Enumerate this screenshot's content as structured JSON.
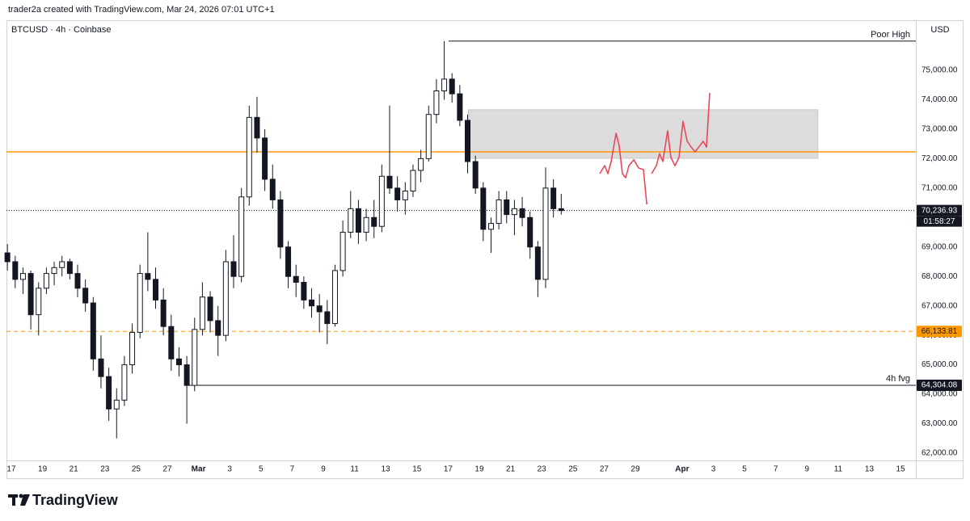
{
  "header": {
    "text": "trader2a created with TradingView.com, Mar 24, 2026 07:01 UTC+1"
  },
  "footer": {
    "brand": "TradingView"
  },
  "chart_data": {
    "type": "candlestick",
    "title": "BTCUSD · 4h · Coinbase",
    "currency": "USD",
    "up_color": "#ffffff",
    "down_color": "#131722",
    "border_color": "#131722",
    "xlim": [
      -0.31,
      57.98
    ],
    "ylim": [
      61753,
      76700
    ],
    "grid": false,
    "xticks": [
      {
        "value": 0,
        "label": "17"
      },
      {
        "value": 2,
        "label": "19"
      },
      {
        "value": 4,
        "label": "21"
      },
      {
        "value": 6,
        "label": "23"
      },
      {
        "value": 8,
        "label": "25"
      },
      {
        "value": 10,
        "label": "27"
      },
      {
        "value": 12,
        "label": "Mar"
      },
      {
        "value": 14,
        "label": "3"
      },
      {
        "value": 16,
        "label": "5"
      },
      {
        "value": 18,
        "label": "7"
      },
      {
        "value": 20,
        "label": "9"
      },
      {
        "value": 22,
        "label": "11"
      },
      {
        "value": 24,
        "label": "13"
      },
      {
        "value": 26,
        "label": "15"
      },
      {
        "value": 28,
        "label": "17"
      },
      {
        "value": 30,
        "label": "19"
      },
      {
        "value": 32,
        "label": "21"
      },
      {
        "value": 34,
        "label": "23"
      },
      {
        "value": 36,
        "label": "25"
      },
      {
        "value": 38,
        "label": "27"
      },
      {
        "value": 40,
        "label": "29"
      },
      {
        "value": 43,
        "label": "Apr"
      },
      {
        "value": 45,
        "label": "3"
      },
      {
        "value": 47,
        "label": "5"
      },
      {
        "value": 49,
        "label": "7"
      },
      {
        "value": 51,
        "label": "9"
      },
      {
        "value": 53,
        "label": "11"
      },
      {
        "value": 55,
        "label": "13"
      },
      {
        "value": 57,
        "label": "15"
      }
    ],
    "yticks": [
      {
        "value": 62000,
        "label": "62,000.00"
      },
      {
        "value": 63000,
        "label": "63,000.00"
      },
      {
        "value": 64000,
        "label": "64,000.00"
      },
      {
        "value": 65000,
        "label": "65,000.00"
      },
      {
        "value": 66000,
        "label": "66,000.00"
      },
      {
        "value": 67000,
        "label": "67,000.00"
      },
      {
        "value": 68000,
        "label": "68,000.00"
      },
      {
        "value": 69000,
        "label": "69,000.00"
      },
      {
        "value": 70000,
        "label": "70,000.00"
      },
      {
        "value": 71000,
        "label": "71,000.00"
      },
      {
        "value": 72000,
        "label": "72,000.00"
      },
      {
        "value": 73000,
        "label": "73,000.00"
      },
      {
        "value": 74000,
        "label": "74,000.00"
      },
      {
        "value": 75000,
        "label": "75,000.00"
      }
    ],
    "x": [
      -0.25,
      0.25,
      0.75,
      1.25,
      1.75,
      2.25,
      2.75,
      3.25,
      3.75,
      4.25,
      4.75,
      5.25,
      5.75,
      6.25,
      6.75,
      7.25,
      7.75,
      8.25,
      8.75,
      9.25,
      9.75,
      10.25,
      10.75,
      11.25,
      11.75,
      12.25,
      12.75,
      13.25,
      13.75,
      14.25,
      14.75,
      15.25,
      15.75,
      16.25,
      16.75,
      17.25,
      17.75,
      18.25,
      18.75,
      19.25,
      19.75,
      20.25,
      20.75,
      21.25,
      21.75,
      22.25,
      22.75,
      23.25,
      23.75,
      24.25,
      24.75,
      25.25,
      25.75,
      26.25,
      26.75,
      27.25,
      27.75,
      28.25,
      28.75,
      29.25,
      29.75,
      30.25,
      30.75,
      31.25,
      31.75,
      32.25,
      32.75,
      33.25,
      33.75,
      34.25,
      34.75,
      35.25
    ],
    "open": [
      68800,
      68500,
      67900,
      68100,
      66700,
      67600,
      68100,
      68300,
      68500,
      68100,
      67600,
      67100,
      65200,
      64600,
      63500,
      63800,
      65000,
      66100,
      68100,
      67900,
      67200,
      66300,
      65200,
      65000,
      64300,
      66200,
      67300,
      66500,
      66000,
      68500,
      68000,
      70700,
      73400,
      72700,
      71300,
      70600,
      69000,
      68000,
      67800,
      67200,
      67000,
      66800,
      66400,
      68200,
      69500,
      70300,
      69500,
      70000,
      69700,
      71400,
      71000,
      70600,
      70900,
      71600,
      72000,
      73500,
      74300,
      74700,
      74200,
      73300,
      71900,
      71000,
      69600,
      69800,
      70600,
      70100,
      70300,
      70000,
      69000,
      67900,
      71000,
      70300
    ],
    "high": [
      69100,
      68700,
      68300,
      68200,
      67800,
      68300,
      68500,
      68700,
      68600,
      68400,
      67900,
      67300,
      66000,
      64900,
      64200,
      65300,
      66400,
      68400,
      69500,
      68300,
      67600,
      66700,
      65600,
      65300,
      66600,
      67800,
      67500,
      67000,
      68900,
      69400,
      71000,
      73800,
      74100,
      73000,
      71800,
      70900,
      69200,
      68400,
      68000,
      67600,
      67400,
      67200,
      68400,
      69900,
      70900,
      70600,
      70300,
      70600,
      71800,
      73800,
      71400,
      71200,
      71800,
      72300,
      73800,
      74700,
      75990,
      74900,
      74500,
      73500,
      72100,
      71200,
      70000,
      70900,
      70900,
      70600,
      70700,
      70200,
      69200,
      71700,
      71300,
      70800
    ],
    "low": [
      68200,
      67600,
      67400,
      66200,
      66000,
      67400,
      67700,
      68000,
      67900,
      67300,
      66800,
      64800,
      64200,
      63100,
      62500,
      63600,
      64700,
      65900,
      67500,
      66900,
      66000,
      64800,
      64600,
      63000,
      64100,
      66000,
      66100,
      65300,
      65800,
      67600,
      67800,
      70400,
      72200,
      70900,
      70300,
      68600,
      67600,
      67300,
      66900,
      66600,
      66100,
      65700,
      66300,
      68000,
      69300,
      69100,
      69200,
      69300,
      69500,
      70800,
      70200,
      70100,
      70700,
      71200,
      71900,
      73200,
      74000,
      73900,
      73100,
      71500,
      70800,
      69200,
      68800,
      69600,
      69800,
      69400,
      69700,
      68600,
      67300,
      67600,
      70000,
      70100
    ],
    "close": [
      68500,
      67900,
      68100,
      66700,
      67600,
      68100,
      68300,
      68500,
      68100,
      67600,
      67100,
      65200,
      64600,
      63500,
      63800,
      65000,
      66100,
      68100,
      67900,
      67200,
      66300,
      65200,
      65000,
      64300,
      66200,
      67300,
      66500,
      66000,
      68500,
      68000,
      70700,
      73400,
      72700,
      71300,
      70600,
      69000,
      68000,
      67800,
      67200,
      67000,
      66800,
      66400,
      68200,
      69500,
      70300,
      69500,
      70000,
      69700,
      71400,
      71000,
      70600,
      70900,
      71600,
      72000,
      73500,
      74300,
      74700,
      74200,
      73300,
      71900,
      71000,
      69600,
      69800,
      70600,
      70100,
      70300,
      70000,
      69000,
      67900,
      71000,
      70300,
      70236.93
    ],
    "zone": {
      "x": [
        29.3,
        51.7
      ],
      "y": [
        72010,
        73660
      ],
      "color": "#dcdcdc"
    },
    "levels": [
      {
        "value": 72230,
        "color": "#ff9800",
        "style": "solid"
      },
      {
        "value": 66133.81,
        "label": "66,133.81",
        "color": "#ff9800",
        "style": "dashed"
      },
      {
        "value": 70236.93,
        "label": "70,236.93",
        "countdown": "01:58:27",
        "color": "#131722",
        "style": "dotted"
      },
      {
        "value": 64304.08,
        "label": "64,304.08",
        "text": "4h fvg",
        "color": "#131722",
        "style": "solid",
        "x_start": 11.35
      },
      {
        "value": 75990,
        "text": "Poor High",
        "color": "#131722",
        "style": "solid",
        "x_start": 28.03
      }
    ],
    "drawing": {
      "color": "#e8485b",
      "x": [
        37.72,
        38.03,
        38.24,
        38.45,
        38.76,
        38.96,
        39.17,
        39.38,
        39.59,
        39.9,
        40.21,
        40.52,
        40.73,
        null,
        41.04,
        41.35,
        41.55,
        41.76,
        42.07,
        42.28,
        42.54,
        42.8,
        43.06,
        43.32,
        43.58,
        43.83,
        44.15,
        44.35,
        44.56,
        44.77
      ],
      "y": [
        71490,
        71760,
        71490,
        71900,
        72860,
        72450,
        71490,
        71350,
        71760,
        71960,
        71680,
        71630,
        70450,
        null,
        71490,
        71760,
        72170,
        71900,
        72940,
        72040,
        71760,
        72040,
        73270,
        72590,
        72390,
        72230,
        72450,
        72590,
        72390,
        74230
      ]
    }
  }
}
